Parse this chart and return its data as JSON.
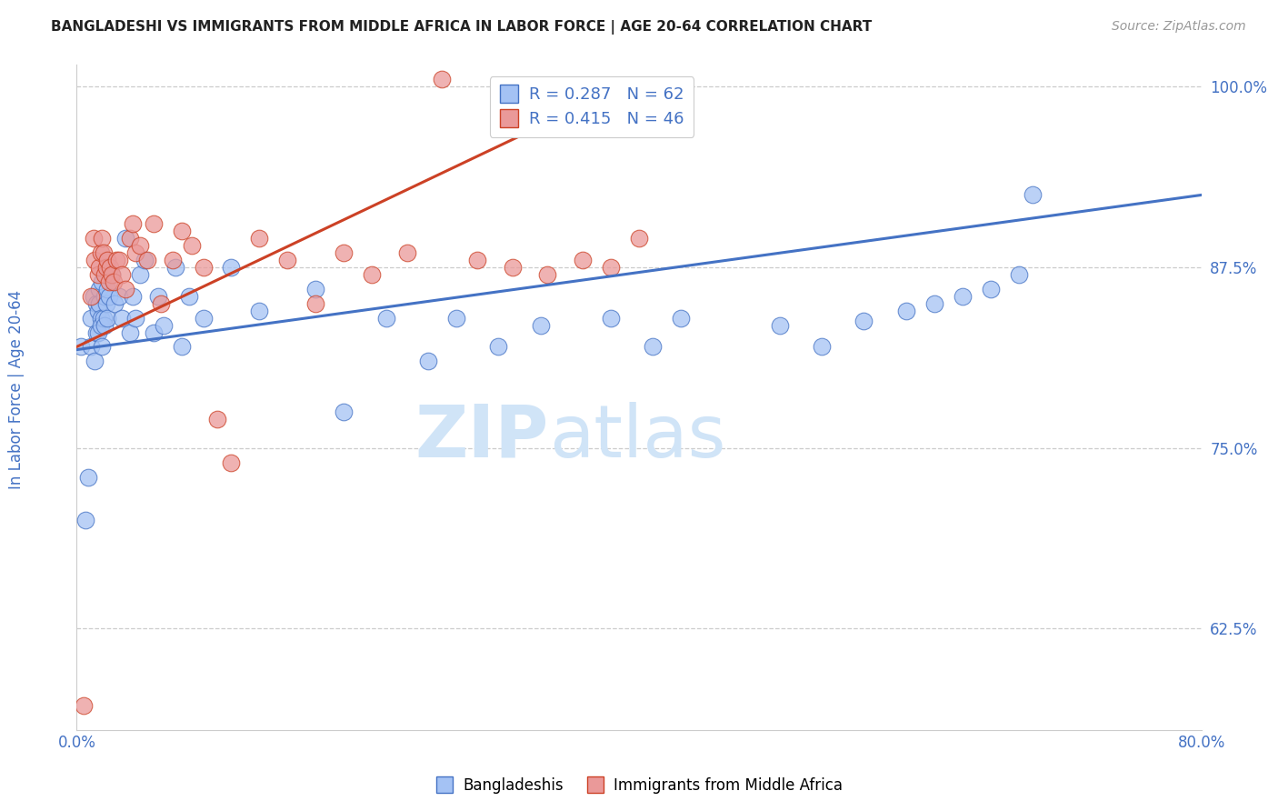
{
  "title": "BANGLADESHI VS IMMIGRANTS FROM MIDDLE AFRICA IN LABOR FORCE | AGE 20-64 CORRELATION CHART",
  "source": "Source: ZipAtlas.com",
  "ylabel": "In Labor Force | Age 20-64",
  "xlim": [
    0.0,
    0.8
  ],
  "ylim": [
    0.555,
    1.015
  ],
  "yticks": [
    0.625,
    0.75,
    0.875,
    1.0
  ],
  "ytick_labels": [
    "62.5%",
    "75.0%",
    "87.5%",
    "100.0%"
  ],
  "xticks": [
    0.0,
    0.1,
    0.2,
    0.3,
    0.4,
    0.5,
    0.6,
    0.7,
    0.8
  ],
  "xtick_labels": [
    "0.0%",
    "",
    "",
    "",
    "",
    "",
    "",
    "",
    "80.0%"
  ],
  "blue_R": 0.287,
  "blue_N": 62,
  "pink_R": 0.415,
  "pink_N": 46,
  "blue_color": "#a4c2f4",
  "pink_color": "#ea9999",
  "trend_blue": "#4472c4",
  "trend_pink": "#cc4125",
  "tick_color": "#4472c4",
  "watermark_color": "#d0e4f7",
  "blue_scatter_x": [
    0.003,
    0.006,
    0.008,
    0.01,
    0.01,
    0.012,
    0.013,
    0.014,
    0.014,
    0.015,
    0.015,
    0.016,
    0.016,
    0.017,
    0.017,
    0.018,
    0.018,
    0.019,
    0.02,
    0.02,
    0.021,
    0.022,
    0.022,
    0.023,
    0.025,
    0.027,
    0.03,
    0.032,
    0.035,
    0.038,
    0.04,
    0.042,
    0.045,
    0.048,
    0.055,
    0.058,
    0.062,
    0.07,
    0.075,
    0.08,
    0.09,
    0.11,
    0.13,
    0.17,
    0.19,
    0.22,
    0.25,
    0.27,
    0.3,
    0.33,
    0.38,
    0.41,
    0.43,
    0.5,
    0.53,
    0.56,
    0.59,
    0.61,
    0.63,
    0.65,
    0.67,
    0.68
  ],
  "blue_scatter_y": [
    0.82,
    0.7,
    0.73,
    0.84,
    0.82,
    0.855,
    0.81,
    0.83,
    0.85,
    0.845,
    0.83,
    0.86,
    0.85,
    0.84,
    0.835,
    0.865,
    0.82,
    0.84,
    0.855,
    0.835,
    0.85,
    0.86,
    0.84,
    0.855,
    0.87,
    0.85,
    0.855,
    0.84,
    0.895,
    0.83,
    0.855,
    0.84,
    0.87,
    0.88,
    0.83,
    0.855,
    0.835,
    0.875,
    0.82,
    0.855,
    0.84,
    0.875,
    0.845,
    0.86,
    0.775,
    0.84,
    0.81,
    0.84,
    0.82,
    0.835,
    0.84,
    0.82,
    0.84,
    0.835,
    0.82,
    0.838,
    0.845,
    0.85,
    0.855,
    0.86,
    0.87,
    0.925
  ],
  "pink_scatter_x": [
    0.005,
    0.01,
    0.012,
    0.013,
    0.015,
    0.016,
    0.017,
    0.018,
    0.019,
    0.02,
    0.021,
    0.022,
    0.023,
    0.024,
    0.025,
    0.026,
    0.028,
    0.03,
    0.032,
    0.035,
    0.038,
    0.04,
    0.042,
    0.045,
    0.05,
    0.055,
    0.06,
    0.068,
    0.075,
    0.082,
    0.09,
    0.1,
    0.11,
    0.13,
    0.15,
    0.17,
    0.19,
    0.21,
    0.235,
    0.26,
    0.285,
    0.31,
    0.335,
    0.36,
    0.38,
    0.4
  ],
  "pink_scatter_y": [
    0.572,
    0.855,
    0.895,
    0.88,
    0.87,
    0.875,
    0.885,
    0.895,
    0.885,
    0.87,
    0.875,
    0.88,
    0.865,
    0.875,
    0.87,
    0.865,
    0.88,
    0.88,
    0.87,
    0.86,
    0.895,
    0.905,
    0.885,
    0.89,
    0.88,
    0.905,
    0.85,
    0.88,
    0.9,
    0.89,
    0.875,
    0.77,
    0.74,
    0.895,
    0.88,
    0.85,
    0.885,
    0.87,
    0.885,
    1.005,
    0.88,
    0.875,
    0.87,
    0.88,
    0.875,
    0.895
  ],
  "blue_trend_x": [
    0.0,
    0.8
  ],
  "blue_trend_y": [
    0.818,
    0.925
  ],
  "pink_trend_x": [
    0.0,
    0.4
  ],
  "pink_trend_y": [
    0.82,
    1.005
  ]
}
